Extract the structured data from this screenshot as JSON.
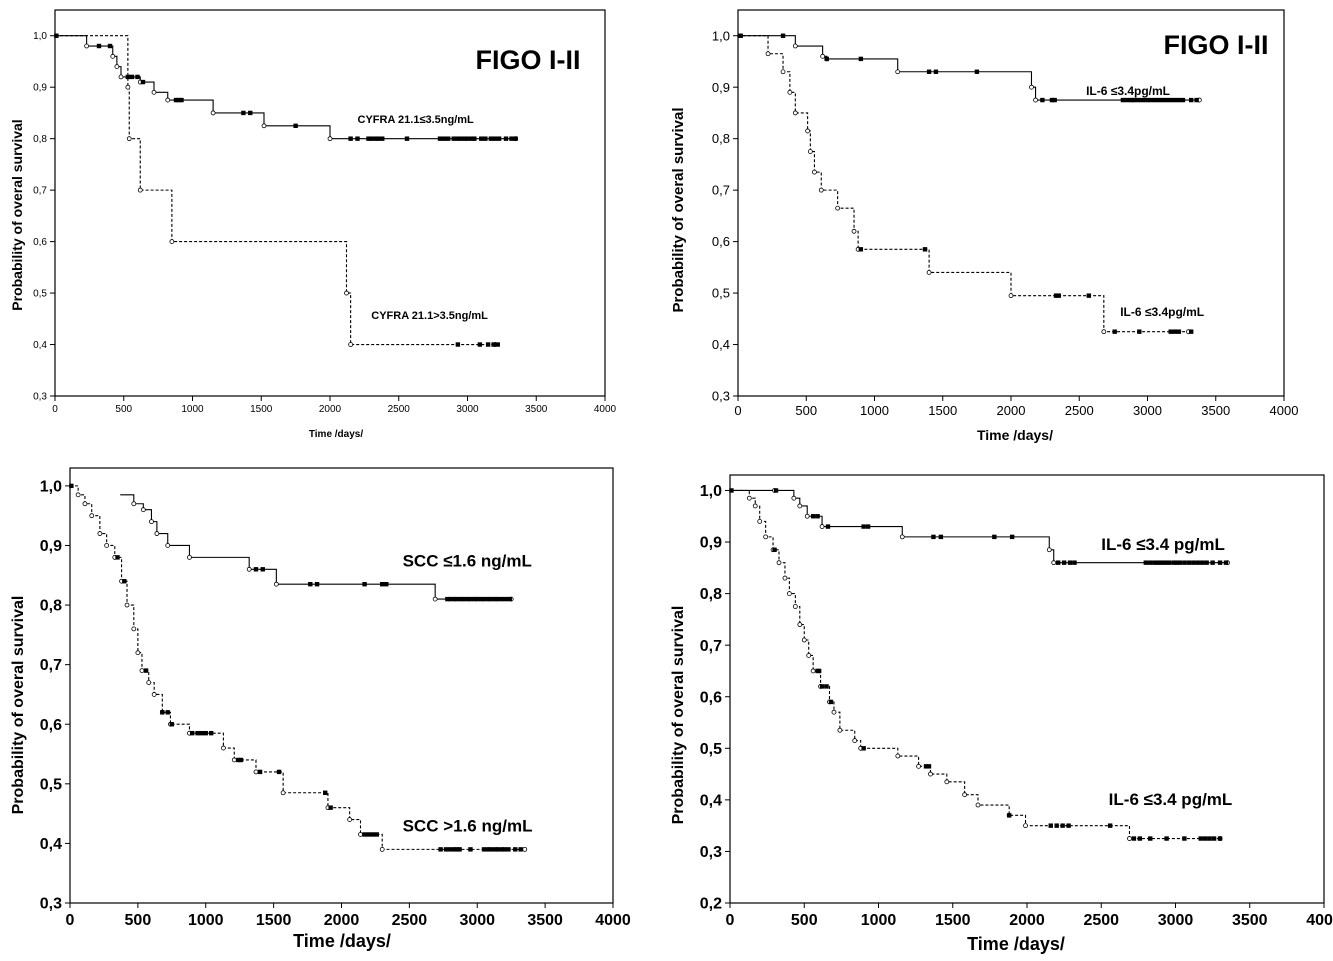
{
  "chart_data": [
    {
      "type": "line",
      "subtype": "kaplan-meier",
      "title": "FIGO I-II",
      "xlabel": "Time /days/",
      "ylabel": "Probability of overal survival",
      "xlim": [
        0,
        4000
      ],
      "ylim": [
        0.3,
        1.05
      ],
      "xticks": [
        "0",
        "500",
        "1000",
        "1500",
        "2000",
        "2500",
        "3000",
        "3500",
        "4000"
      ],
      "yticks": [
        "0,3",
        "0,4",
        "0,5",
        "0,6",
        "0,7",
        "0,8",
        "0,9",
        "1,0"
      ],
      "grid": false,
      "series": [
        {
          "name": "CYFRA 21.1≤3.5ng/mL",
          "style": "solid",
          "steps": [
            [
              0,
              1.0
            ],
            [
              230,
              0.98
            ],
            [
              420,
              0.96
            ],
            [
              450,
              0.94
            ],
            [
              480,
              0.92
            ],
            [
              620,
              0.91
            ],
            [
              720,
              0.89
            ],
            [
              820,
              0.875
            ],
            [
              1150,
              0.85
            ],
            [
              1520,
              0.825
            ],
            [
              2000,
              0.8
            ],
            [
              3350,
              0.8
            ]
          ],
          "censored": [
            10,
            320,
            400,
            530,
            560,
            600,
            640,
            880,
            900,
            920,
            1370,
            1420,
            1750,
            2150,
            2200,
            2280,
            2300,
            2330,
            2350,
            2380,
            2560,
            2800,
            2830,
            2860,
            2900,
            2930,
            2950,
            2980,
            3000,
            3030,
            3050,
            3100,
            3130,
            3170,
            3200,
            3230,
            3280,
            3320,
            3350
          ]
        },
        {
          "name": "CYFRA 21.1>3.5ng/mL",
          "style": "dashed",
          "steps": [
            [
              0,
              1.0
            ],
            [
              530,
              0.9
            ],
            [
              540,
              0.8
            ],
            [
              620,
              0.7
            ],
            [
              850,
              0.6
            ],
            [
              2120,
              0.5
            ],
            [
              2150,
              0.4
            ],
            [
              3200,
              0.4
            ]
          ],
          "censored": [
            2930,
            3090,
            3150,
            3190,
            3220
          ]
        }
      ],
      "labels": [
        {
          "text": "CYFRA 21.1≤3.5ng/mL",
          "x": 2200,
          "y": 0.83,
          "size": 11
        },
        {
          "text": "CYFRA 21.1>3.5ng/mL",
          "x": 2300,
          "y": 0.45,
          "size": 11
        }
      ]
    },
    {
      "type": "line",
      "subtype": "kaplan-meier",
      "title": "FIGO I-II",
      "xlabel": "Time /days/",
      "ylabel": "Probability of overal survival",
      "xlim": [
        0,
        4000
      ],
      "ylim": [
        0.3,
        1.05
      ],
      "xticks": [
        "0",
        "500",
        "1000",
        "1500",
        "2000",
        "2500",
        "3000",
        "3500",
        "4000"
      ],
      "yticks": [
        "0,3",
        "0,4",
        "0,5",
        "0,6",
        "0,7",
        "0,8",
        "0,9",
        "1,0"
      ],
      "grid": false,
      "series": [
        {
          "name": "IL-6 ≤3.4pg/mL",
          "style": "solid",
          "steps": [
            [
              0,
              1.0
            ],
            [
              420,
              0.98
            ],
            [
              620,
              0.96
            ],
            [
              650,
              0.955
            ],
            [
              1170,
              0.93
            ],
            [
              2150,
              0.9
            ],
            [
              2180,
              0.875
            ],
            [
              3380,
              0.875
            ]
          ],
          "censored": [
            20,
            330,
            650,
            900,
            1400,
            1450,
            1750,
            2230,
            2300,
            2320,
            2820,
            2850,
            2880,
            2900,
            2930,
            2960,
            2990,
            3020,
            3050,
            3080,
            3110,
            3140,
            3170,
            3200,
            3230,
            3260,
            3320,
            3360
          ]
        },
        {
          "name": "IL-6 ≤3.4pg/mL",
          "style": "dashed",
          "steps": [
            [
              0,
              1.0
            ],
            [
              220,
              0.965
            ],
            [
              330,
              0.93
            ],
            [
              380,
              0.89
            ],
            [
              420,
              0.85
            ],
            [
              510,
              0.815
            ],
            [
              530,
              0.775
            ],
            [
              560,
              0.735
            ],
            [
              610,
              0.7
            ],
            [
              730,
              0.665
            ],
            [
              850,
              0.62
            ],
            [
              880,
              0.585
            ],
            [
              1400,
              0.54
            ],
            [
              2000,
              0.495
            ],
            [
              2680,
              0.425
            ],
            [
              3300,
              0.425
            ]
          ],
          "censored": [
            900,
            1370,
            2330,
            2350,
            2570,
            2760,
            2940,
            3170,
            3200,
            3230,
            3320
          ]
        }
      ],
      "labels": [
        {
          "text": "IL-6 ≤3.4pg/mL",
          "x": 2550,
          "y": 0.885,
          "size": 12
        },
        {
          "text": "IL-6 ≤3.4pg/mL",
          "x": 2800,
          "y": 0.455,
          "size": 12
        }
      ]
    },
    {
      "type": "line",
      "subtype": "kaplan-meier",
      "xlabel": "Time /days/",
      "ylabel": "Probability of overal survival",
      "xlim": [
        0,
        4000
      ],
      "ylim": [
        0.3,
        1.03
      ],
      "xticks": [
        "0",
        "500",
        "1000",
        "1500",
        "2000",
        "2500",
        "3000",
        "3500",
        "4000"
      ],
      "yticks": [
        "0,3",
        "0,4",
        "0,5",
        "0,6",
        "0,7",
        "0,8",
        "0,9",
        "1,0"
      ],
      "grid": false,
      "series": [
        {
          "name": "SCC ≤1.6 ng/mL",
          "style": "solid",
          "steps": [
            [
              370,
              0.985
            ],
            [
              470,
              0.97
            ],
            [
              540,
              0.96
            ],
            [
              600,
              0.94
            ],
            [
              640,
              0.92
            ],
            [
              720,
              0.9
            ],
            [
              880,
              0.88
            ],
            [
              1320,
              0.86
            ],
            [
              1520,
              0.835
            ],
            [
              2690,
              0.81
            ],
            [
              3250,
              0.81
            ]
          ],
          "censored": [
            1370,
            1420,
            1770,
            1820,
            2170,
            2300,
            2330,
            2780,
            2800,
            2830,
            2850,
            2880,
            2900,
            2930,
            2950,
            2980,
            3000,
            3030,
            3050,
            3080,
            3100,
            3130,
            3150,
            3180,
            3210,
            3240
          ]
        },
        {
          "name": "SCC >1.6 ng/mL",
          "style": "dashed",
          "steps": [
            [
              0,
              1.0
            ],
            [
              60,
              0.985
            ],
            [
              110,
              0.97
            ],
            [
              160,
              0.95
            ],
            [
              220,
              0.92
            ],
            [
              270,
              0.9
            ],
            [
              330,
              0.88
            ],
            [
              380,
              0.84
            ],
            [
              420,
              0.8
            ],
            [
              470,
              0.76
            ],
            [
              500,
              0.72
            ],
            [
              530,
              0.69
            ],
            [
              580,
              0.67
            ],
            [
              620,
              0.65
            ],
            [
              680,
              0.62
            ],
            [
              740,
              0.6
            ],
            [
              880,
              0.585
            ],
            [
              1130,
              0.56
            ],
            [
              1210,
              0.54
            ],
            [
              1370,
              0.52
            ],
            [
              1570,
              0.485
            ],
            [
              1900,
              0.46
            ],
            [
              2060,
              0.44
            ],
            [
              2140,
              0.415
            ],
            [
              2300,
              0.39
            ],
            [
              3350,
              0.39
            ]
          ],
          "censored": [
            10,
            350,
            400,
            560,
            680,
            720,
            750,
            900,
            940,
            970,
            1000,
            1040,
            1240,
            1260,
            1400,
            1540,
            1880,
            1920,
            2170,
            2200,
            2230,
            2260,
            2730,
            2770,
            2800,
            2830,
            2850,
            2870,
            2950,
            3050,
            3080,
            3100,
            3130,
            3150,
            3180,
            3200,
            3230,
            3280,
            3320
          ]
        }
      ],
      "labels": [
        {
          "text": "SCC ≤1.6 ng/mL",
          "x": 2450,
          "y": 0.865,
          "size": 17
        },
        {
          "text": "SCC >1.6 ng/mL",
          "x": 2450,
          "y": 0.42,
          "size": 17
        }
      ]
    },
    {
      "type": "line",
      "subtype": "kaplan-meier",
      "xlabel": "Time /days/",
      "ylabel": "Probability of overal survival",
      "xlim": [
        0,
        4000
      ],
      "ylim": [
        0.2,
        1.03
      ],
      "xticks": [
        "0",
        "500",
        "1000",
        "1500",
        "2000",
        "2500",
        "3000",
        "3500",
        "4000"
      ],
      "yticks": [
        "0,2",
        "0,3",
        "0,4",
        "0,5",
        "0,6",
        "0,7",
        "0,8",
        "0,9",
        "1,0"
      ],
      "grid": false,
      "series": [
        {
          "name": "IL-6 ≤3.4 pg/mL",
          "style": "solid",
          "steps": [
            [
              0,
              1.0
            ],
            [
              300,
              1.0
            ],
            [
              430,
              0.985
            ],
            [
              470,
              0.97
            ],
            [
              520,
              0.95
            ],
            [
              620,
              0.93
            ],
            [
              1160,
              0.91
            ],
            [
              2150,
              0.885
            ],
            [
              2180,
              0.86
            ],
            [
              3350,
              0.86
            ]
          ],
          "censored": [
            10,
            310,
            560,
            590,
            660,
            900,
            930,
            1370,
            1420,
            1780,
            1900,
            2210,
            2250,
            2290,
            2320,
            2800,
            2830,
            2860,
            2880,
            2900,
            2920,
            2940,
            2960,
            2990,
            3010,
            3030,
            3060,
            3090,
            3120,
            3150,
            3180,
            3210,
            3250,
            3300,
            3340
          ]
        },
        {
          "name": "IL-6 ≤3.4 pg/mL",
          "style": "dashed",
          "steps": [
            [
              0,
              1.0
            ],
            [
              130,
              0.985
            ],
            [
              170,
              0.97
            ],
            [
              200,
              0.94
            ],
            [
              240,
              0.91
            ],
            [
              290,
              0.885
            ],
            [
              330,
              0.86
            ],
            [
              370,
              0.83
            ],
            [
              400,
              0.8
            ],
            [
              440,
              0.775
            ],
            [
              470,
              0.74
            ],
            [
              500,
              0.71
            ],
            [
              530,
              0.68
            ],
            [
              560,
              0.65
            ],
            [
              610,
              0.62
            ],
            [
              670,
              0.59
            ],
            [
              700,
              0.57
            ],
            [
              740,
              0.535
            ],
            [
              840,
              0.515
            ],
            [
              880,
              0.5
            ],
            [
              1130,
              0.485
            ],
            [
              1270,
              0.465
            ],
            [
              1350,
              0.45
            ],
            [
              1460,
              0.435
            ],
            [
              1580,
              0.41
            ],
            [
              1670,
              0.39
            ],
            [
              1880,
              0.37
            ],
            [
              1990,
              0.35
            ],
            [
              2690,
              0.325
            ],
            [
              3300,
              0.325
            ]
          ],
          "censored": [
            300,
            590,
            600,
            620,
            650,
            680,
            900,
            1320,
            1340,
            1880,
            2160,
            2200,
            2240,
            2280,
            2560,
            2720,
            2760,
            2830,
            2940,
            3060,
            3170,
            3200,
            3230,
            3260,
            3300
          ]
        }
      ],
      "labels": [
        {
          "text": "IL-6 ≤3.4 pg/mL",
          "x": 2500,
          "y": 0.885,
          "size": 17
        },
        {
          "text": "IL-6 ≤3.4 pg/mL",
          "x": 2550,
          "y": 0.39,
          "size": 17
        }
      ]
    }
  ]
}
